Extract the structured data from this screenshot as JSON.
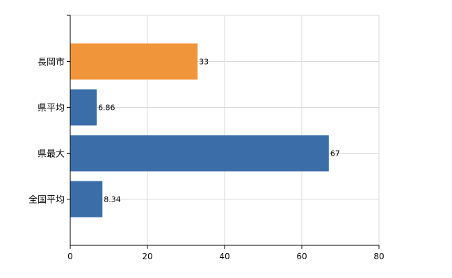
{
  "chart_data": {
    "type": "bar",
    "orientation": "horizontal",
    "categories": [
      "長岡市",
      "県平均",
      "県最大",
      "全国平均"
    ],
    "values": [
      33,
      6.86,
      67,
      8.34
    ],
    "value_labels": [
      "33",
      "6.86",
      "67",
      "8.34"
    ],
    "bar_colors": [
      "#f0953a",
      "#3b6ea8",
      "#3b6ea8",
      "#3b6ea8"
    ],
    "xlim": [
      0,
      80
    ],
    "xticks": [
      0,
      20,
      40,
      60,
      80
    ],
    "xtick_labels": [
      "0",
      "20",
      "40",
      "60",
      "80"
    ],
    "grid": true
  }
}
